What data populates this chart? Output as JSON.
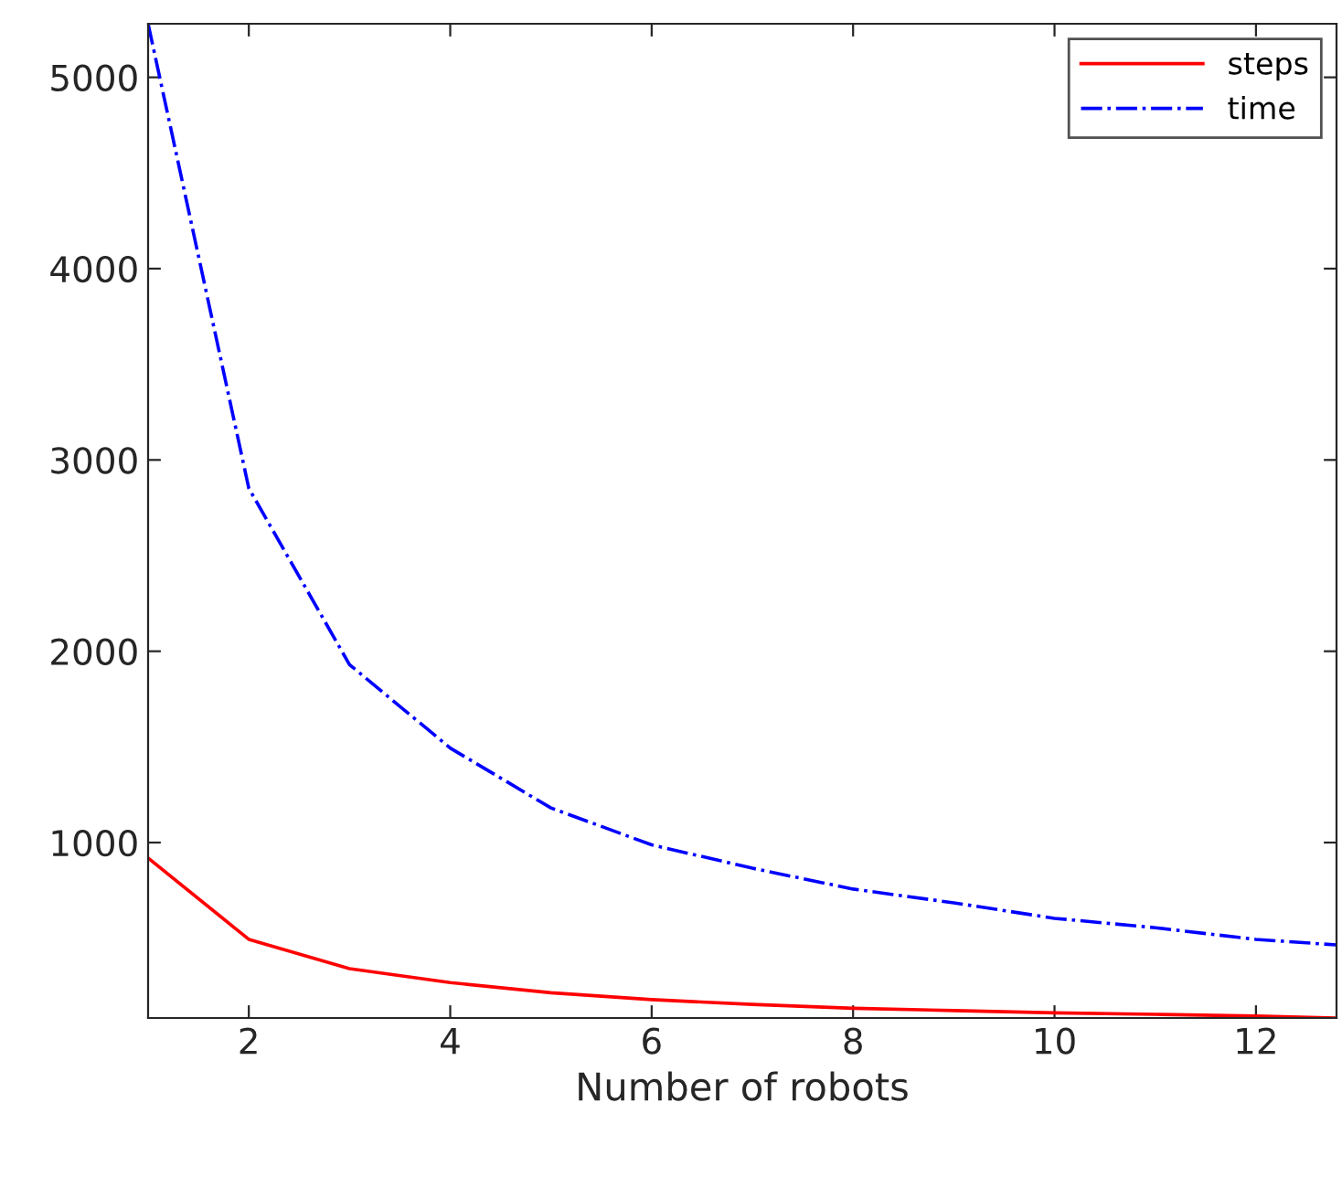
{
  "chart_data": {
    "type": "line",
    "xlabel": "Number of robots",
    "x": [
      1,
      2,
      3,
      4,
      5,
      6,
      7,
      8,
      9,
      10,
      11,
      12,
      12.8
    ],
    "series": [
      {
        "name": "steps",
        "color": "#ff0000",
        "line_style": "solid",
        "values": [
          919,
          494,
          341,
          268,
          215,
          179,
          154,
          134,
          122,
          110,
          102,
          93,
          83
        ]
      },
      {
        "name": "time",
        "color": "#0000ff",
        "line_style": "dashdot",
        "values": [
          5280,
          2852,
          1930,
          1494,
          1181,
          988,
          866,
          757,
          685,
          604,
          555,
          494,
          465
        ]
      }
    ],
    "xlim": [
      1,
      12.8
    ],
    "xticks": [
      2,
      4,
      6,
      8,
      10,
      12
    ],
    "ylim": [
      83,
      5280
    ],
    "yticks": [
      1000,
      2000,
      3000,
      4000,
      5000
    ],
    "grid": false,
    "legend": "top right",
    "marker": "none"
  }
}
